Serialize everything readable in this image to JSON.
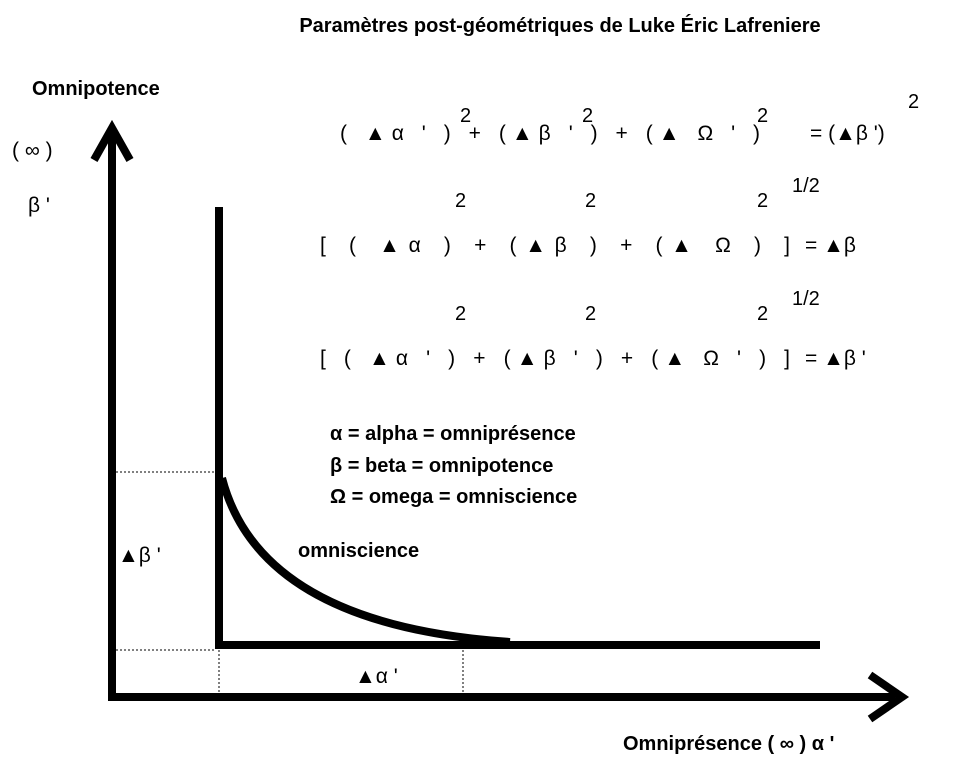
{
  "title": "Paramètres post-géométriques de Luke Éric Lafreniere",
  "y_axis": {
    "label": "Omnipotence",
    "infinity": "( ∞ )",
    "symbol": "β '"
  },
  "x_axis": {
    "label": "Omniprésence ( ∞ ) α '"
  },
  "equations": [
    {
      "left": "( ▲α ' ) + (▲β ' ) + (▲ Ω ' )",
      "right": "= (▲β ')",
      "exponents": [
        "2",
        "2",
        "2",
        "2"
      ]
    },
    {
      "left": "[ ( ▲α ) + (▲β ) + (▲ Ω ) ]",
      "right": "= ▲β",
      "exponents": [
        "2",
        "2",
        "2",
        "1/2"
      ]
    },
    {
      "left": "[ ( ▲α ' ) + (▲β ' ) + (▲ Ω ' ) ]",
      "right": "= ▲β '",
      "exponents": [
        "2",
        "2",
        "2",
        "1/2"
      ]
    }
  ],
  "legend": [
    "α = alpha = omniprésence",
    "β = beta = omnipotence",
    "Ω = omega = omniscience"
  ],
  "curve_label": "omniscience",
  "delta_beta": "▲β '",
  "delta_alpha": "▲α '"
}
